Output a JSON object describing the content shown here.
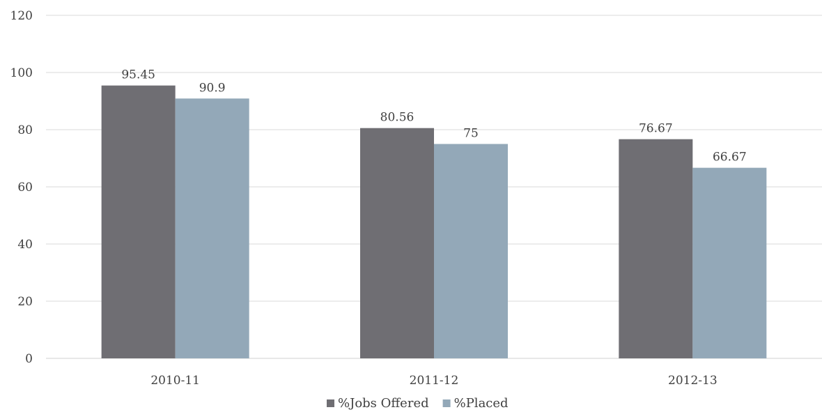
{
  "chart_data": {
    "type": "bar",
    "categories": [
      "2010-11",
      "2011-12",
      "2012-13"
    ],
    "series": [
      {
        "name": "%Jobs Offered",
        "values": [
          95.45,
          80.56,
          76.67
        ],
        "color": "#6f6e73"
      },
      {
        "name": "%Placed",
        "values": [
          90.9,
          75,
          66.67
        ],
        "color": "#93a8b8"
      }
    ],
    "title": "",
    "xlabel": "",
    "ylabel": "",
    "ylim": [
      0,
      120
    ],
    "yticks": [
      0,
      20,
      40,
      60,
      80,
      100,
      120
    ],
    "grid": true,
    "legend_position": "bottom-center",
    "data_labels": [
      "95.45",
      "80.56",
      "76.67",
      "90.9",
      "75",
      "66.67"
    ]
  }
}
